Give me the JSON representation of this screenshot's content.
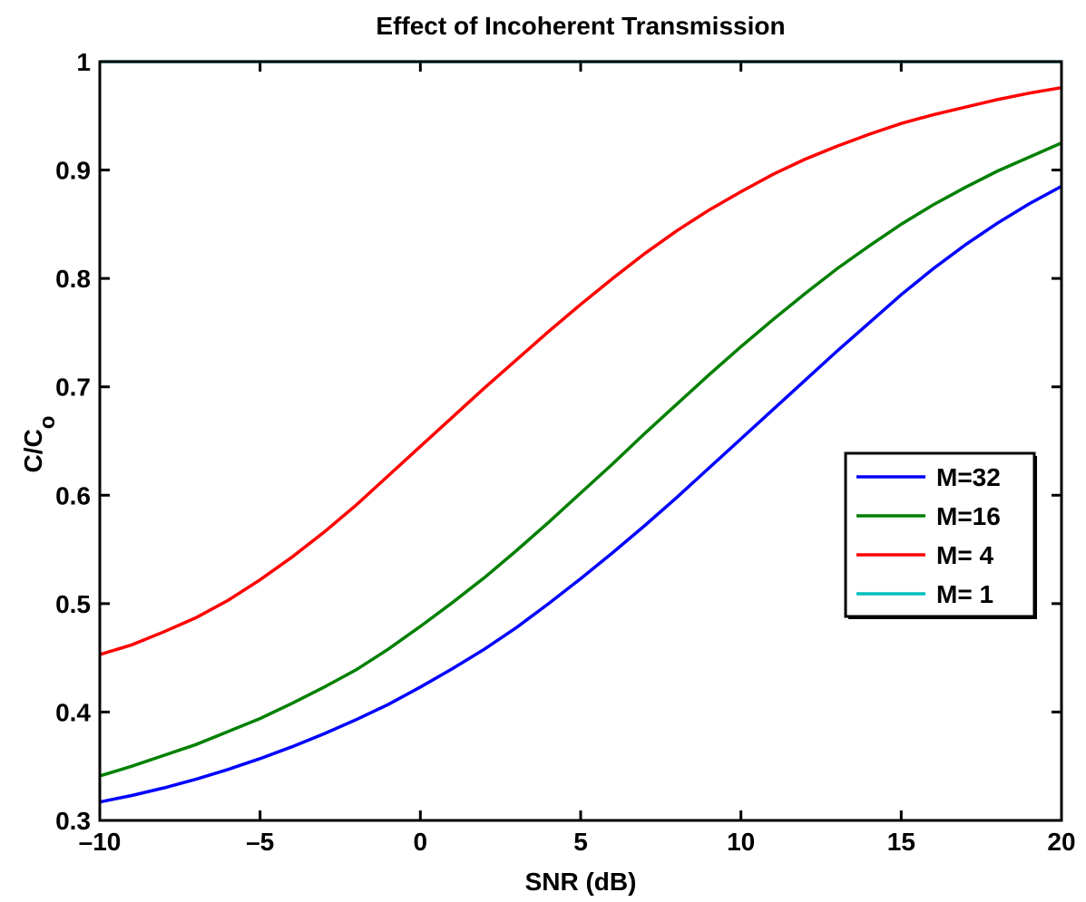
{
  "chart_data": {
    "type": "line",
    "title": "Effect of Incoherent Transmission",
    "xlabel": "SNR (dB)",
    "ylabel": {
      "text": "C/C",
      "subscript": "o"
    },
    "x": [
      -10,
      -9,
      -8,
      -7,
      -6,
      -5,
      -4,
      -3,
      -2,
      -1,
      0,
      1,
      2,
      3,
      4,
      5,
      6,
      7,
      8,
      9,
      10,
      11,
      12,
      13,
      14,
      15,
      16,
      17,
      18,
      19,
      20
    ],
    "series": [
      {
        "name": "M=32",
        "color": "#0000ff",
        "values": [
          0.317,
          0.323,
          0.33,
          0.338,
          0.347,
          0.357,
          0.368,
          0.38,
          0.393,
          0.407,
          0.423,
          0.44,
          0.458,
          0.478,
          0.5,
          0.523,
          0.547,
          0.572,
          0.598,
          0.625,
          0.652,
          0.679,
          0.706,
          0.733,
          0.759,
          0.785,
          0.809,
          0.831,
          0.851,
          0.869,
          0.885
        ]
      },
      {
        "name": "M=16",
        "color": "#008000",
        "values": [
          0.341,
          0.35,
          0.36,
          0.37,
          0.382,
          0.394,
          0.408,
          0.423,
          0.439,
          0.458,
          0.479,
          0.501,
          0.524,
          0.549,
          0.575,
          0.602,
          0.629,
          0.657,
          0.684,
          0.711,
          0.737,
          0.762,
          0.786,
          0.809,
          0.83,
          0.85,
          0.868,
          0.884,
          0.899,
          0.912,
          0.925
        ]
      },
      {
        "name": "M= 4",
        "color": "#ff0000",
        "values": [
          0.453,
          0.462,
          0.474,
          0.487,
          0.503,
          0.522,
          0.543,
          0.566,
          0.591,
          0.618,
          0.645,
          0.672,
          0.699,
          0.725,
          0.751,
          0.776,
          0.8,
          0.823,
          0.844,
          0.863,
          0.88,
          0.896,
          0.91,
          0.922,
          0.933,
          0.943,
          0.951,
          0.958,
          0.965,
          0.971,
          0.976
        ]
      },
      {
        "name": "M= 1",
        "color": "#00bfbf",
        "values": [
          1,
          1,
          1,
          1,
          1,
          1,
          1,
          1,
          1,
          1,
          1,
          1,
          1,
          1,
          1,
          1,
          1,
          1,
          1,
          1,
          1,
          1,
          1,
          1,
          1,
          1,
          1,
          1,
          1,
          1,
          1
        ]
      }
    ],
    "xlim": [
      -10,
      20
    ],
    "xticks": [
      {
        "value": -10,
        "label": "–10"
      },
      {
        "value": -5,
        "label": "–5"
      },
      0,
      5,
      10,
      15,
      20
    ],
    "ylim": [
      0.3,
      1
    ],
    "yticks": [
      0.3,
      0.4,
      0.5,
      0.6,
      0.7,
      0.8,
      0.9,
      1
    ],
    "grid": false,
    "legend": "right"
  }
}
